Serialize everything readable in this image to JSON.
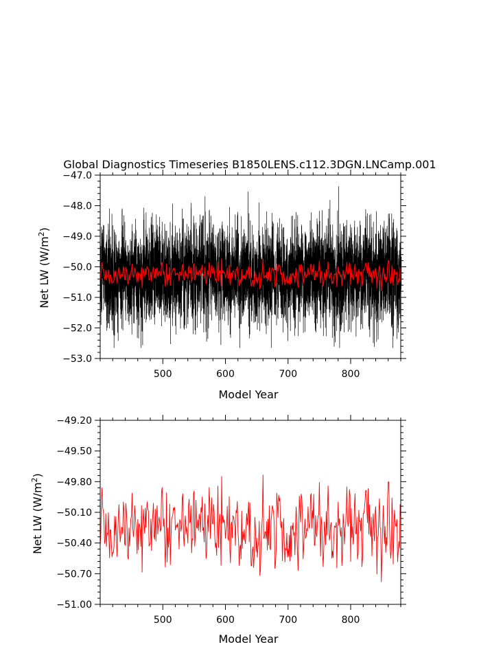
{
  "chart_data": [
    {
      "type": "line",
      "title": "Global Diagnostics Timeseries B1850LENS.c112.3DGN.LNCamp.001",
      "xlabel": "Model Year",
      "ylabel": {
        "base": "Net LW (W/m",
        "sup": "2",
        "close": ")"
      },
      "xlim": [
        400,
        880
      ],
      "ylim": [
        -53.0,
        -47.0
      ],
      "xticks": [
        500,
        600,
        700,
        800
      ],
      "xtick_labels": [
        "500",
        "600",
        "700",
        "800"
      ],
      "yticks": [
        -53.0,
        -52.0,
        -51.0,
        -50.0,
        -49.0,
        -48.0,
        -47.0
      ],
      "ytick_labels": [
        "−53.0",
        "−52.0",
        "−51.0",
        "−50.0",
        "−49.0",
        "−48.0",
        "−47.0"
      ],
      "grid": false,
      "series": [
        {
          "color": "#000000",
          "style": "monthly",
          "summary": {
            "mean": -50.1,
            "spread": 0.8,
            "min": -52.65,
            "max": -47.1
          }
        },
        {
          "color": "#ff0000",
          "style": "annual",
          "summary": {
            "mean": -50.2,
            "min": -50.8,
            "max": -49.6
          }
        }
      ]
    },
    {
      "type": "line",
      "title": "",
      "xlabel": "Model Year",
      "ylabel": {
        "base": "Net LW (W/m",
        "sup": "2",
        "close": ")"
      },
      "xlim": [
        400,
        880
      ],
      "ylim": [
        -51.0,
        -49.2
      ],
      "xticks": [
        500,
        600,
        700,
        800
      ],
      "xtick_labels": [
        "500",
        "600",
        "700",
        "800"
      ],
      "yticks": [
        -51.0,
        -50.7,
        -50.4,
        -50.1,
        -49.8,
        -49.5,
        -49.2
      ],
      "ytick_labels": [
        "−51.00",
        "−50.70",
        "−50.40",
        "−50.10",
        "−49.80",
        "−49.50",
        "−49.20"
      ],
      "grid": false,
      "series": [
        {
          "color": "#ff0000",
          "style": "annual",
          "summary": {
            "mean": -50.25,
            "min": -50.93,
            "max": -49.5
          }
        }
      ]
    }
  ]
}
